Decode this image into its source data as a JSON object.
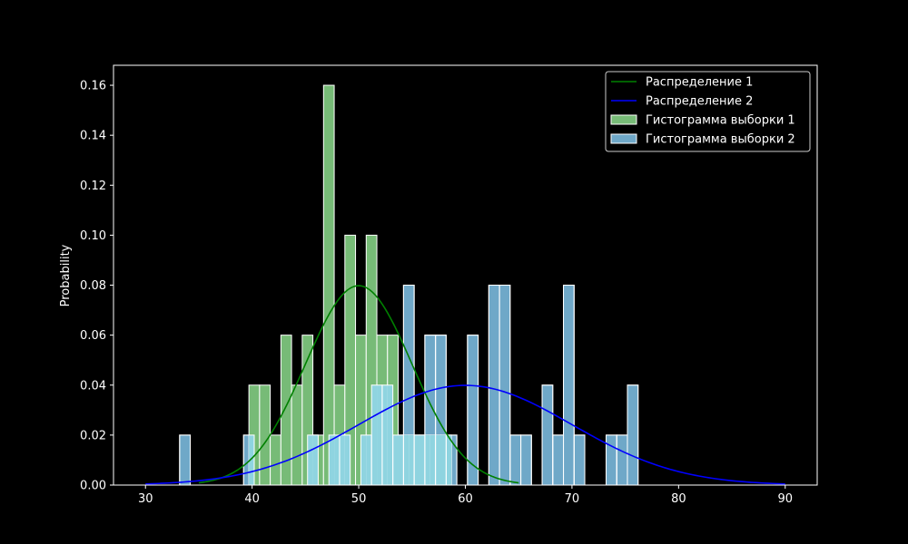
{
  "chart_data": {
    "type": "histogram+line",
    "title": "",
    "xlabel": "",
    "ylabel": "Probability",
    "xlim": [
      27,
      93
    ],
    "ylim": [
      0,
      0.168
    ],
    "xticks": [
      30,
      40,
      50,
      60,
      70,
      80,
      90
    ],
    "yticks": [
      0.0,
      0.02,
      0.04,
      0.06,
      0.08,
      0.1,
      0.12,
      0.14,
      0.16
    ],
    "ytick_labels": [
      "0.00",
      "0.02",
      "0.04",
      "0.06",
      "0.08",
      "0.10",
      "0.12",
      "0.14",
      "0.16"
    ],
    "legend_position": "top-right",
    "grid": false,
    "series": [
      {
        "name": "Распределение 1",
        "kind": "line",
        "color": "#008000",
        "distribution": {
          "mean": 50,
          "std": 5
        },
        "x_range": [
          35,
          65
        ]
      },
      {
        "name": "Распределение 2",
        "kind": "line",
        "color": "#0000ff",
        "distribution": {
          "mean": 60,
          "std": 10
        },
        "x_range": [
          30,
          90
        ]
      },
      {
        "name": "Гистограмма выборки 1",
        "kind": "histogram",
        "color": "#77bb77",
        "edge_color": "#ffffff",
        "bins": [
          {
            "x0": 39.7,
            "x1": 40.7,
            "value": 0.04
          },
          {
            "x0": 40.7,
            "x1": 41.7,
            "value": 0.04
          },
          {
            "x0": 41.7,
            "x1": 42.7,
            "value": 0.02
          },
          {
            "x0": 42.7,
            "x1": 43.7,
            "value": 0.06
          },
          {
            "x0": 43.7,
            "x1": 44.7,
            "value": 0.04
          },
          {
            "x0": 44.7,
            "x1": 45.7,
            "value": 0.06
          },
          {
            "x0": 45.7,
            "x1": 46.7,
            "value": 0.02
          },
          {
            "x0": 46.7,
            "x1": 47.7,
            "value": 0.16
          },
          {
            "x0": 47.7,
            "x1": 48.7,
            "value": 0.04
          },
          {
            "x0": 48.7,
            "x1": 49.7,
            "value": 0.1
          },
          {
            "x0": 49.7,
            "x1": 50.7,
            "value": 0.06
          },
          {
            "x0": 50.7,
            "x1": 51.7,
            "value": 0.1
          },
          {
            "x0": 51.7,
            "x1": 52.7,
            "value": 0.06
          },
          {
            "x0": 52.7,
            "x1": 53.7,
            "value": 0.06
          },
          {
            "x0": 53.7,
            "x1": 54.7,
            "value": 0.02
          },
          {
            "x0": 54.7,
            "x1": 55.7,
            "value": 0.02
          },
          {
            "x0": 55.7,
            "x1": 56.7,
            "value": 0.02
          },
          {
            "x0": 56.7,
            "x1": 57.7,
            "value": 0.02
          },
          {
            "x0": 57.7,
            "x1": 58.7,
            "value": 0.02
          }
        ]
      },
      {
        "name": "Гистограмма выборки 2",
        "kind": "histogram",
        "color": "#6fa8c8",
        "overlap_color": "#8fd4e0",
        "edge_color": "#ffffff",
        "bins": [
          {
            "x0": 33.2,
            "x1": 34.2,
            "value": 0.02
          },
          {
            "x0": 39.2,
            "x1": 40.2,
            "value": 0.02
          },
          {
            "x0": 45.2,
            "x1": 46.2,
            "value": 0.02
          },
          {
            "x0": 47.2,
            "x1": 48.2,
            "value": 0.02
          },
          {
            "x0": 48.2,
            "x1": 49.2,
            "value": 0.02
          },
          {
            "x0": 50.2,
            "x1": 51.2,
            "value": 0.02
          },
          {
            "x0": 51.2,
            "x1": 52.2,
            "value": 0.04
          },
          {
            "x0": 52.2,
            "x1": 53.2,
            "value": 0.04
          },
          {
            "x0": 53.2,
            "x1": 54.2,
            "value": 0.02
          },
          {
            "x0": 54.2,
            "x1": 55.2,
            "value": 0.08
          },
          {
            "x0": 55.2,
            "x1": 56.2,
            "value": 0.02
          },
          {
            "x0": 56.2,
            "x1": 57.2,
            "value": 0.06
          },
          {
            "x0": 57.2,
            "x1": 58.2,
            "value": 0.06
          },
          {
            "x0": 58.2,
            "x1": 59.2,
            "value": 0.02
          },
          {
            "x0": 60.2,
            "x1": 61.2,
            "value": 0.06
          },
          {
            "x0": 62.2,
            "x1": 63.2,
            "value": 0.08
          },
          {
            "x0": 63.2,
            "x1": 64.2,
            "value": 0.08
          },
          {
            "x0": 64.2,
            "x1": 65.2,
            "value": 0.02
          },
          {
            "x0": 65.2,
            "x1": 66.2,
            "value": 0.02
          },
          {
            "x0": 67.2,
            "x1": 68.2,
            "value": 0.04
          },
          {
            "x0": 68.2,
            "x1": 69.2,
            "value": 0.02
          },
          {
            "x0": 69.2,
            "x1": 70.2,
            "value": 0.08
          },
          {
            "x0": 70.2,
            "x1": 71.2,
            "value": 0.02
          },
          {
            "x0": 73.2,
            "x1": 74.2,
            "value": 0.02
          },
          {
            "x0": 74.2,
            "x1": 75.2,
            "value": 0.02
          },
          {
            "x0": 75.2,
            "x1": 76.2,
            "value": 0.04
          }
        ]
      }
    ]
  }
}
